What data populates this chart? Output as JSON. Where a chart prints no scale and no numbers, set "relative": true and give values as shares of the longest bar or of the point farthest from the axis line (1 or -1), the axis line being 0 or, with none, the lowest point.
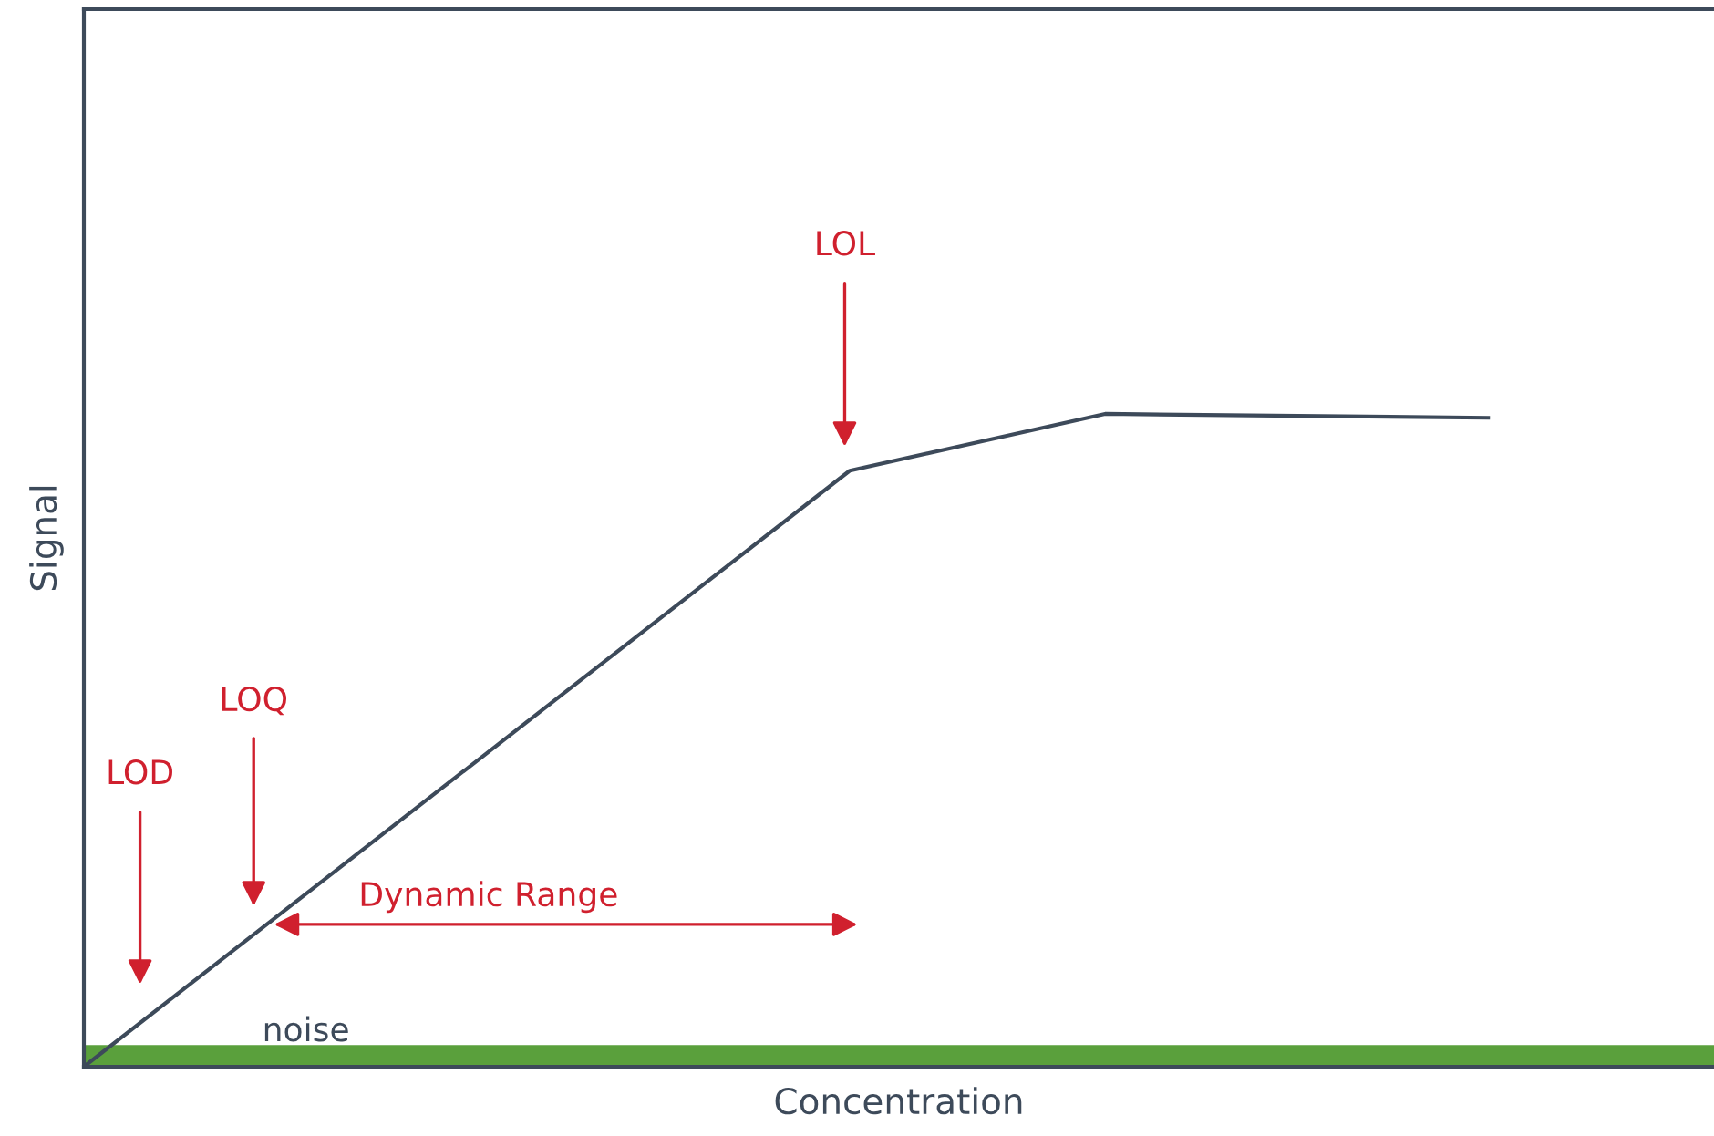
{
  "chart_data": {
    "type": "line",
    "relative": true,
    "xlabel": "Concentration",
    "ylabel": "Signal",
    "categories": [
      null,
      null,
      null,
      null,
      null,
      null,
      null,
      null,
      null,
      null,
      null,
      null,
      null
    ],
    "series": [
      {
        "color": "#3d4a5a",
        "values": [
          0,
          null,
          null,
          null,
          null,
          null,
          0.913,
          null,
          1,
          null,
          null,
          0.994,
          null
        ]
      }
    ],
    "bands": [
      {
        "axis": "y",
        "from": 0,
        "to": 0.033,
        "label": "noise",
        "color": "#5aa03c"
      }
    ],
    "annotations": [
      "LOD",
      "LOQ",
      "LOL",
      "Dynamic Range"
    ],
    "legend": false,
    "marker": "none",
    "line_style": "solid",
    "tick_labels": false
  }
}
